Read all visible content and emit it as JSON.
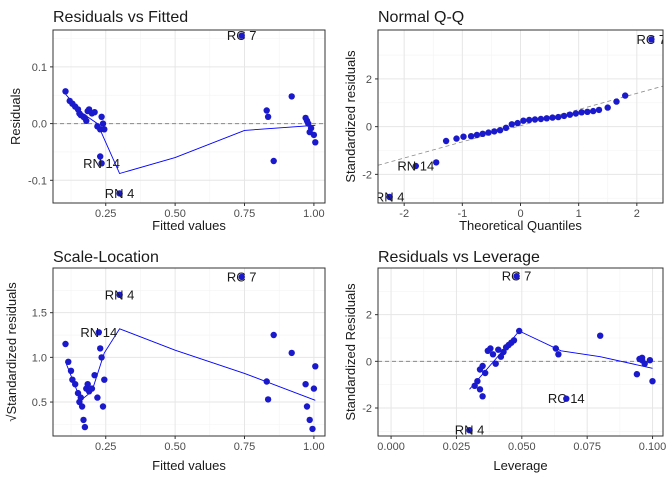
{
  "colors": {
    "point": "#1a1acc",
    "smooth_line": "#0000ff",
    "ref_line": "#8a8a8a",
    "grid_major": "#e6e6e6",
    "grid_minor": "#f3f3f3",
    "panel_border": "#333333",
    "text": "#1a1a1a",
    "axis_text": "#4d4d4d"
  },
  "chart_data": [
    {
      "type": "scatter",
      "title": "Residuals vs Fitted",
      "xlabel": "Fitted values",
      "ylabel": "Residuals",
      "xlim": [
        0.06,
        1.04
      ],
      "ylim": [
        -0.14,
        0.165
      ],
      "xticks": [
        0.25,
        0.5,
        0.75,
        1.0
      ],
      "xtick_labels": [
        "0.25",
        "0.50",
        "0.75",
        "1.00"
      ],
      "yticks": [
        -0.1,
        0.0,
        0.1
      ],
      "ytick_labels": [
        "-0.1",
        "0.0",
        "0.1"
      ],
      "grid": true,
      "ref_hline": 0,
      "points": [
        [
          0.105,
          0.057
        ],
        [
          0.12,
          0.04
        ],
        [
          0.13,
          0.035
        ],
        [
          0.14,
          0.03
        ],
        [
          0.15,
          0.025
        ],
        [
          0.155,
          0.018
        ],
        [
          0.16,
          0.015
        ],
        [
          0.17,
          0.012
        ],
        [
          0.175,
          0.01
        ],
        [
          0.18,
          0.005
        ],
        [
          0.185,
          0.022
        ],
        [
          0.19,
          0.025
        ],
        [
          0.2,
          0.018
        ],
        [
          0.21,
          0.02
        ],
        [
          0.22,
          -0.005
        ],
        [
          0.23,
          -0.01
        ],
        [
          0.235,
          0.012
        ],
        [
          0.24,
          0.0
        ],
        [
          0.245,
          -0.01
        ],
        [
          0.23,
          -0.058
        ],
        [
          0.235,
          -0.07
        ],
        [
          0.3,
          -0.123
        ],
        [
          0.74,
          0.155
        ],
        [
          0.83,
          0.023
        ],
        [
          0.835,
          0.012
        ],
        [
          0.855,
          -0.066
        ],
        [
          0.92,
          0.048
        ],
        [
          0.975,
          0.005
        ],
        [
          0.98,
          0.0
        ],
        [
          0.985,
          -0.015
        ],
        [
          0.99,
          -0.008
        ],
        [
          1.0,
          -0.02
        ],
        [
          1.005,
          -0.033
        ],
        [
          0.97,
          0.01
        ]
      ],
      "smooth": [
        [
          0.105,
          0.052
        ],
        [
          0.16,
          0.02
        ],
        [
          0.22,
          0.0
        ],
        [
          0.3,
          -0.088
        ],
        [
          0.5,
          -0.06
        ],
        [
          0.75,
          -0.012
        ],
        [
          1.005,
          -0.003
        ]
      ],
      "point_labels": [
        {
          "text": "RC 7",
          "x": 0.74,
          "y": 0.155
        },
        {
          "text": "RN 14",
          "x": 0.235,
          "y": -0.07
        },
        {
          "text": "RN 4",
          "x": 0.3,
          "y": -0.123
        }
      ]
    },
    {
      "type": "scatter",
      "title": "Normal Q-Q",
      "xlabel": "Theoretical Quantiles",
      "ylabel": "Standardized residuals",
      "xlim": [
        -2.45,
        2.45
      ],
      "ylim": [
        -3.2,
        4.05
      ],
      "xticks": [
        -2,
        -1,
        0,
        1,
        2
      ],
      "xtick_labels": [
        "-2",
        "-1",
        "0",
        "1",
        "2"
      ],
      "yticks": [
        -2,
        0,
        2
      ],
      "ytick_labels": [
        "-2",
        "0",
        "2"
      ],
      "grid": true,
      "ref_line": [
        [
          -2.45,
          -1.62
        ],
        [
          2.45,
          1.7
        ]
      ],
      "points": [
        [
          -2.25,
          -2.95
        ],
        [
          -1.8,
          -1.65
        ],
        [
          -1.45,
          -1.5
        ],
        [
          -1.28,
          -0.6
        ],
        [
          -1.1,
          -0.5
        ],
        [
          -0.98,
          -0.42
        ],
        [
          -0.85,
          -0.4
        ],
        [
          -0.75,
          -0.35
        ],
        [
          -0.65,
          -0.3
        ],
        [
          -0.55,
          -0.25
        ],
        [
          -0.45,
          -0.2
        ],
        [
          -0.35,
          -0.15
        ],
        [
          -0.25,
          -0.05
        ],
        [
          -0.15,
          0.1
        ],
        [
          -0.05,
          0.15
        ],
        [
          0.05,
          0.25
        ],
        [
          0.15,
          0.28
        ],
        [
          0.25,
          0.3
        ],
        [
          0.35,
          0.32
        ],
        [
          0.45,
          0.35
        ],
        [
          0.55,
          0.38
        ],
        [
          0.65,
          0.4
        ],
        [
          0.75,
          0.45
        ],
        [
          0.85,
          0.5
        ],
        [
          0.95,
          0.55
        ],
        [
          1.05,
          0.6
        ],
        [
          1.15,
          0.62
        ],
        [
          1.25,
          0.65
        ],
        [
          1.35,
          0.7
        ],
        [
          1.5,
          0.8
        ],
        [
          1.65,
          1.05
        ],
        [
          1.8,
          1.3
        ],
        [
          2.25,
          3.65
        ]
      ],
      "point_labels": [
        {
          "text": "RC 7",
          "x": 2.25,
          "y": 3.65
        },
        {
          "text": "RN 14",
          "x": -1.8,
          "y": -1.65
        },
        {
          "text": "RN 4",
          "x": -2.25,
          "y": -2.95
        }
      ]
    },
    {
      "type": "scatter",
      "title": "Scale-Location",
      "xlabel": "Fitted values",
      "ylabel": "√Standardized residuals",
      "xlim": [
        0.06,
        1.04
      ],
      "ylim": [
        0.12,
        2.0
      ],
      "xticks": [
        0.25,
        0.5,
        0.75,
        1.0
      ],
      "xtick_labels": [
        "0.25",
        "0.50",
        "0.75",
        "1.00"
      ],
      "yticks": [
        0.5,
        1.0,
        1.5
      ],
      "ytick_labels": [
        "0.5",
        "1.0",
        "1.5"
      ],
      "grid": true,
      "points": [
        [
          0.105,
          1.15
        ],
        [
          0.115,
          0.95
        ],
        [
          0.125,
          0.85
        ],
        [
          0.13,
          0.75
        ],
        [
          0.14,
          0.7
        ],
        [
          0.15,
          0.6
        ],
        [
          0.155,
          0.5
        ],
        [
          0.16,
          0.55
        ],
        [
          0.165,
          0.45
        ],
        [
          0.17,
          0.3
        ],
        [
          0.175,
          0.22
        ],
        [
          0.18,
          0.65
        ],
        [
          0.185,
          0.7
        ],
        [
          0.19,
          0.62
        ],
        [
          0.2,
          0.65
        ],
        [
          0.21,
          0.8
        ],
        [
          0.22,
          0.55
        ],
        [
          0.225,
          1.28
        ],
        [
          0.23,
          1.1
        ],
        [
          0.235,
          1.0
        ],
        [
          0.24,
          0.45
        ],
        [
          0.245,
          0.75
        ],
        [
          0.3,
          1.7
        ],
        [
          0.74,
          1.9
        ],
        [
          0.83,
          0.73
        ],
        [
          0.835,
          0.53
        ],
        [
          0.855,
          1.25
        ],
        [
          0.92,
          1.05
        ],
        [
          0.97,
          0.7
        ],
        [
          0.975,
          0.45
        ],
        [
          0.985,
          0.3
        ],
        [
          0.995,
          0.2
        ],
        [
          1.0,
          0.65
        ],
        [
          1.005,
          0.9
        ]
      ],
      "smooth": [
        [
          0.105,
          0.95
        ],
        [
          0.16,
          0.52
        ],
        [
          0.2,
          0.62
        ],
        [
          0.245,
          1.05
        ],
        [
          0.3,
          1.32
        ],
        [
          0.5,
          1.08
        ],
        [
          0.75,
          0.82
        ],
        [
          1.005,
          0.52
        ]
      ],
      "point_labels": [
        {
          "text": "RC 7",
          "x": 0.74,
          "y": 1.9
        },
        {
          "text": "RN 4",
          "x": 0.3,
          "y": 1.7
        },
        {
          "text": "RN 14",
          "x": 0.225,
          "y": 1.28
        }
      ]
    },
    {
      "type": "scatter",
      "title": "Residuals vs Leverage",
      "xlabel": "Leverage",
      "ylabel": "Standardized Residuals",
      "xlim": [
        -0.005,
        0.104
      ],
      "ylim": [
        -3.2,
        4.0
      ],
      "xticks": [
        0.0,
        0.025,
        0.05,
        0.075,
        0.1
      ],
      "xtick_labels": [
        "0.000",
        "0.025",
        "0.050",
        "0.075",
        "0.100"
      ],
      "yticks": [
        -2,
        0,
        2
      ],
      "ytick_labels": [
        "-2",
        "0",
        "2"
      ],
      "grid": true,
      "ref_hline": 0,
      "points": [
        [
          0.03,
          -2.95
        ],
        [
          0.032,
          -1.05
        ],
        [
          0.033,
          -0.85
        ],
        [
          0.034,
          -1.2
        ],
        [
          0.035,
          -1.5
        ],
        [
          0.034,
          -0.35
        ],
        [
          0.035,
          -0.2
        ],
        [
          0.036,
          -0.5
        ],
        [
          0.037,
          0.45
        ],
        [
          0.038,
          0.55
        ],
        [
          0.039,
          0.3
        ],
        [
          0.04,
          -0.1
        ],
        [
          0.041,
          0.5
        ],
        [
          0.042,
          0.2
        ],
        [
          0.043,
          0.4
        ],
        [
          0.044,
          0.6
        ],
        [
          0.045,
          0.7
        ],
        [
          0.046,
          0.8
        ],
        [
          0.047,
          0.9
        ],
        [
          0.048,
          3.65
        ],
        [
          0.049,
          1.3
        ],
        [
          0.063,
          0.55
        ],
        [
          0.064,
          0.3
        ],
        [
          0.067,
          -1.6
        ],
        [
          0.08,
          1.1
        ],
        [
          0.094,
          -0.55
        ],
        [
          0.095,
          0.1
        ],
        [
          0.096,
          0.15
        ],
        [
          0.097,
          -0.1
        ],
        [
          0.099,
          0.05
        ],
        [
          0.1,
          -0.85
        ],
        [
          0.096,
          0.05
        ]
      ],
      "smooth": [
        [
          0.03,
          -1.2
        ],
        [
          0.04,
          0.1
        ],
        [
          0.049,
          1.3
        ],
        [
          0.065,
          0.45
        ],
        [
          0.08,
          0.2
        ],
        [
          0.1,
          -0.3
        ]
      ],
      "point_labels": [
        {
          "text": "RC 7",
          "x": 0.048,
          "y": 3.65
        },
        {
          "text": "RC 14",
          "x": 0.067,
          "y": -1.6
        },
        {
          "text": "RN 4",
          "x": 0.03,
          "y": -2.95
        }
      ]
    }
  ]
}
